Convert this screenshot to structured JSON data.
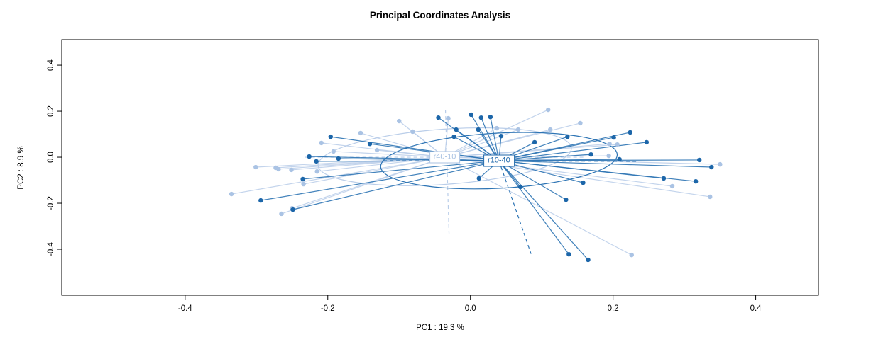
{
  "title": "Principal Coordinates Analysis",
  "chart_data": {
    "type": "scatter",
    "title": "Principal Coordinates Analysis",
    "xlabel": "PC1 :  19.3 %",
    "ylabel": "PC2 :  8.9 %",
    "xlim": [
      -0.573,
      0.488
    ],
    "ylim": [
      -0.6,
      0.511
    ],
    "grid": false,
    "legend_position": "none",
    "x_ticks": [
      -0.4,
      -0.2,
      0.0,
      0.2,
      0.4
    ],
    "x_tick_labels": [
      "-0.4",
      "-0.2",
      "0.0",
      "0.2",
      "0.4"
    ],
    "y_ticks": [
      -0.4,
      -0.2,
      0.0,
      0.2,
      0.4
    ],
    "y_tick_labels": [
      "-0.4",
      "-0.2",
      "0.0",
      "0.2",
      "0.4"
    ],
    "series": [
      {
        "name": "r40-10",
        "point_color": "#aac3e4",
        "line_color": "#b9cde9",
        "label_color": "#a9c2e2",
        "centroid": [
          -0.036,
          0.0
        ],
        "ellipse": {
          "cx": -0.036,
          "cy": 0.002,
          "rx": 0.178,
          "ry": 0.12,
          "rotation_deg": -4
        },
        "dashed_lines": [
          [
            [
              -0.232,
              0.0
            ],
            [
              0.16,
              0.0
            ]
          ],
          [
            [
              -0.035,
              0.206
            ],
            [
              -0.03,
              -0.332
            ]
          ]
        ],
        "points": [
          [
            -0.1,
            0.157
          ],
          [
            -0.154,
            0.105
          ],
          [
            -0.209,
            0.062
          ],
          [
            -0.192,
            0.025
          ],
          [
            -0.131,
            0.031
          ],
          [
            -0.301,
            -0.043
          ],
          [
            -0.273,
            -0.046
          ],
          [
            -0.269,
            -0.052
          ],
          [
            -0.251,
            -0.055
          ],
          [
            -0.215,
            -0.062
          ],
          [
            -0.234,
            -0.117
          ],
          [
            -0.335,
            -0.16
          ],
          [
            -0.265,
            -0.246
          ],
          [
            -0.25,
            -0.222
          ],
          [
            -0.031,
            0.169
          ],
          [
            -0.081,
            0.111
          ],
          [
            0.037,
            0.126
          ],
          [
            0.067,
            0.12
          ],
          [
            0.109,
            0.206
          ],
          [
            0.112,
            0.12
          ],
          [
            0.154,
            0.148
          ],
          [
            0.206,
            0.055
          ],
          [
            0.195,
            0.058
          ],
          [
            0.194,
            0.006
          ],
          [
            0.283,
            -0.126
          ],
          [
            0.35,
            -0.031
          ],
          [
            0.336,
            -0.172
          ],
          [
            0.226,
            -0.425
          ]
        ]
      },
      {
        "name": "r10-40",
        "point_color": "#1c66a9",
        "line_color": "#2d74b4",
        "label_color": "#1c66a9",
        "centroid": [
          0.04,
          -0.015
        ],
        "ellipse": {
          "cx": 0.04,
          "cy": -0.015,
          "rx": 0.166,
          "ry": 0.12,
          "rotation_deg": -3
        },
        "dashed_lines": [
          [
            [
              -0.122,
              -0.015
            ],
            [
              0.236,
              -0.018
            ]
          ],
          [
            [
              0.04,
              -0.015
            ],
            [
              0.085,
              -0.42
            ]
          ]
        ],
        "points": [
          [
            -0.196,
            0.089
          ],
          [
            -0.141,
            0.058
          ],
          [
            -0.226,
            0.003
          ],
          [
            -0.185,
            -0.006
          ],
          [
            -0.216,
            -0.018
          ],
          [
            -0.235,
            -0.095
          ],
          [
            -0.294,
            -0.188
          ],
          [
            -0.249,
            -0.228
          ],
          [
            -0.045,
            0.172
          ],
          [
            0.001,
            0.185
          ],
          [
            0.015,
            0.172
          ],
          [
            0.028,
            0.175
          ],
          [
            -0.02,
            0.12
          ],
          [
            -0.023,
            0.089
          ],
          [
            0.011,
            0.12
          ],
          [
            0.043,
            0.092
          ],
          [
            0.09,
            0.065
          ],
          [
            0.136,
            0.089
          ],
          [
            0.201,
            0.086
          ],
          [
            0.224,
            0.108
          ],
          [
            0.247,
            0.065
          ],
          [
            0.169,
            0.012
          ],
          [
            0.209,
            -0.009
          ],
          [
            0.012,
            -0.092
          ],
          [
            0.07,
            -0.129
          ],
          [
            0.134,
            -0.185
          ],
          [
            0.158,
            -0.111
          ],
          [
            0.138,
            -0.422
          ],
          [
            0.165,
            -0.446
          ],
          [
            0.321,
            -0.012
          ],
          [
            0.338,
            -0.043
          ],
          [
            0.271,
            -0.092
          ],
          [
            0.316,
            -0.105
          ]
        ]
      }
    ]
  }
}
